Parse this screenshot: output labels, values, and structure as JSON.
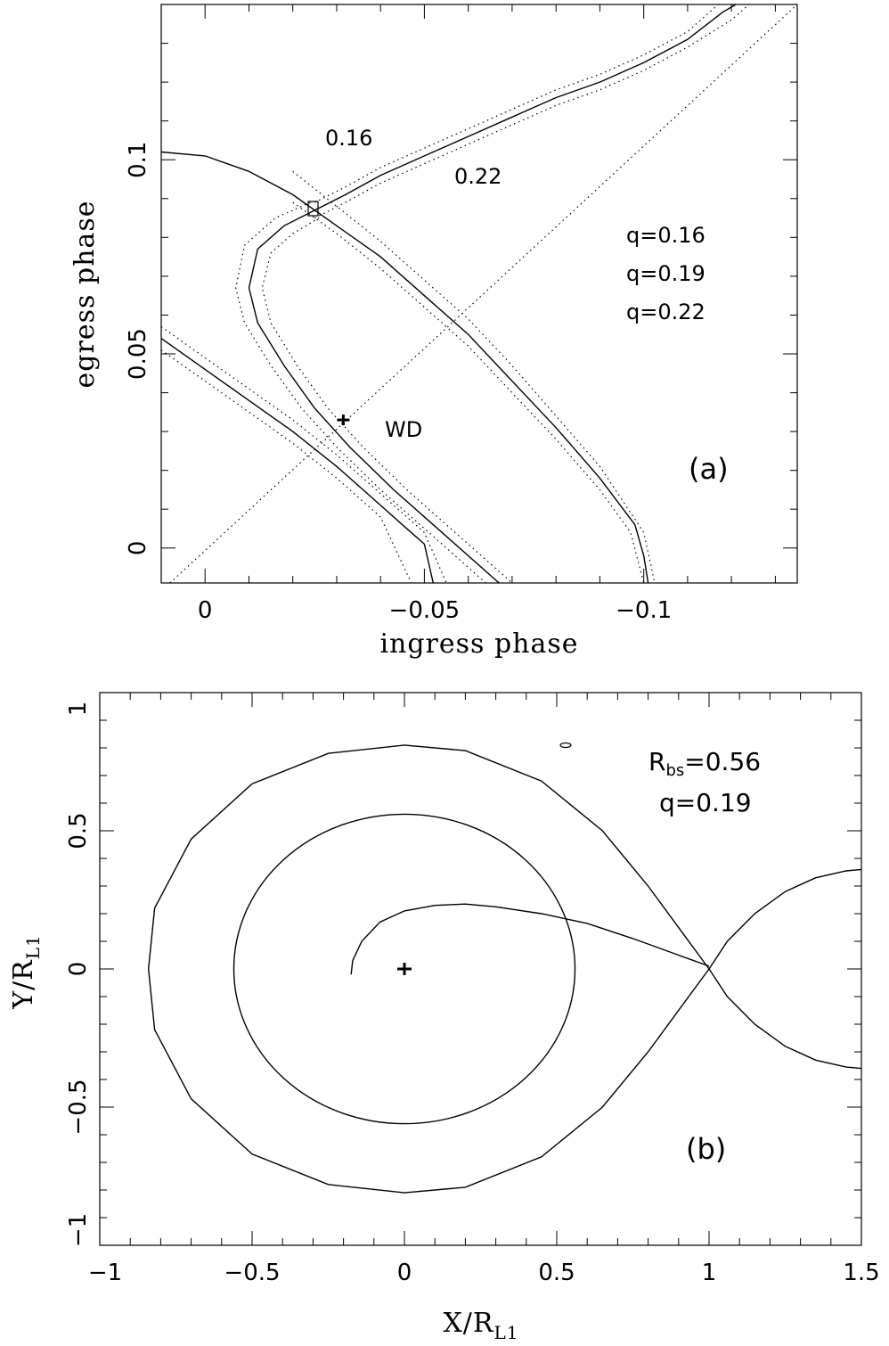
{
  "chart_data": [
    {
      "type": "line",
      "panel_label": "(a)",
      "xlabel": "ingress phase",
      "ylabel": "egress phase",
      "xlim": [
        0.01,
        -0.135
      ],
      "ylim": [
        -0.009,
        0.14
      ],
      "x_ticks": [
        0,
        -0.05,
        -0.1
      ],
      "x_tick_labels": [
        "0",
        "−0.05",
        "−0.1"
      ],
      "y_ticks": [
        0,
        0.05,
        0.1
      ],
      "y_tick_labels": [
        "0",
        "0.05",
        "0.1"
      ],
      "annotations": {
        "curve_label_1": "0.16",
        "curve_label_2": "0.22",
        "q_1": "q=0.16",
        "q_2": "q=0.19",
        "q_3": "q=0.22",
        "wd_label": "WD"
      },
      "wd_point": {
        "x": -0.0315,
        "y": 0.033
      },
      "series": [
        {
          "style": "solid",
          "points": [
            [
              0.01,
              0.102
            ],
            [
              0.0,
              0.101
            ],
            [
              -0.01,
              0.097
            ],
            [
              -0.02,
              0.091
            ],
            [
              -0.03,
              0.083
            ],
            [
              -0.04,
              0.075
            ],
            [
              -0.05,
              0.065
            ],
            [
              -0.06,
              0.055
            ],
            [
              -0.07,
              0.043
            ],
            [
              -0.08,
              0.031
            ],
            [
              -0.09,
              0.018
            ],
            [
              -0.098,
              0.006
            ],
            [
              -0.1,
              -0.002
            ],
            [
              -0.101,
              -0.009
            ]
          ]
        },
        {
          "style": "dotted",
          "points": [
            [
              -0.02,
              0.097
            ],
            [
              -0.03,
              0.088
            ],
            [
              -0.04,
              0.079
            ],
            [
              -0.05,
              0.069
            ],
            [
              -0.06,
              0.059
            ],
            [
              -0.07,
              0.047
            ],
            [
              -0.08,
              0.034
            ],
            [
              -0.09,
              0.021
            ],
            [
              -0.1,
              0.004
            ],
            [
              -0.1025,
              -0.009
            ]
          ]
        },
        {
          "style": "dotted",
          "points": [
            [
              -0.02,
              0.089
            ],
            [
              -0.03,
              0.081
            ],
            [
              -0.04,
              0.072
            ],
            [
              -0.05,
              0.062
            ],
            [
              -0.06,
              0.052
            ],
            [
              -0.07,
              0.04
            ],
            [
              -0.08,
              0.028
            ],
            [
              -0.09,
              0.015
            ],
            [
              -0.097,
              0.004
            ],
            [
              -0.1,
              -0.009
            ]
          ]
        },
        {
          "style": "solid",
          "points": [
            [
              -0.025,
              0.087
            ],
            [
              -0.018,
              0.083
            ],
            [
              -0.012,
              0.077
            ],
            [
              -0.01,
              0.067
            ],
            [
              -0.012,
              0.058
            ],
            [
              -0.018,
              0.047
            ],
            [
              -0.025,
              0.036
            ],
            [
              -0.033,
              0.026
            ],
            [
              -0.043,
              0.015
            ],
            [
              -0.055,
              0.003
            ],
            [
              -0.067,
              -0.009
            ]
          ]
        },
        {
          "style": "solid",
          "points": [
            [
              -0.025,
              0.087
            ],
            [
              -0.032,
              0.091
            ],
            [
              -0.04,
              0.096
            ],
            [
              -0.05,
              0.101
            ],
            [
              -0.06,
              0.106
            ],
            [
              -0.07,
              0.111
            ],
            [
              -0.08,
              0.116
            ],
            [
              -0.09,
              0.12
            ],
            [
              -0.1,
              0.125
            ],
            [
              -0.11,
              0.131
            ],
            [
              -0.118,
              0.138
            ],
            [
              -0.121,
              0.14
            ]
          ]
        },
        {
          "style": "dotted",
          "points": [
            [
              -0.024,
              0.089
            ],
            [
              -0.016,
              0.085
            ],
            [
              -0.009,
              0.078
            ],
            [
              -0.007,
              0.067
            ],
            [
              -0.009,
              0.058
            ],
            [
              -0.015,
              0.047
            ],
            [
              -0.022,
              0.036
            ],
            [
              -0.03,
              0.026
            ],
            [
              -0.04,
              0.015
            ],
            [
              -0.052,
              0.003
            ],
            [
              -0.064,
              -0.009
            ]
          ]
        },
        {
          "style": "dotted",
          "points": [
            [
              -0.026,
              0.085
            ],
            [
              -0.02,
              0.081
            ],
            [
              -0.015,
              0.076
            ],
            [
              -0.013,
              0.067
            ],
            [
              -0.015,
              0.058
            ],
            [
              -0.021,
              0.047
            ],
            [
              -0.028,
              0.036
            ],
            [
              -0.036,
              0.026
            ],
            [
              -0.046,
              0.015
            ],
            [
              -0.058,
              0.003
            ],
            [
              -0.07,
              -0.009
            ]
          ]
        },
        {
          "style": "dotted",
          "points": [
            [
              -0.025,
              0.089
            ],
            [
              -0.032,
              0.093
            ],
            [
              -0.04,
              0.098
            ],
            [
              -0.05,
              0.103
            ],
            [
              -0.06,
              0.108
            ],
            [
              -0.07,
              0.113
            ],
            [
              -0.08,
              0.118
            ],
            [
              -0.09,
              0.122
            ],
            [
              -0.1,
              0.127
            ],
            [
              -0.11,
              0.133
            ],
            [
              -0.117,
              0.14
            ]
          ]
        },
        {
          "style": "dotted",
          "points": [
            [
              -0.025,
              0.085
            ],
            [
              -0.032,
              0.089
            ],
            [
              -0.04,
              0.094
            ],
            [
              -0.05,
              0.099
            ],
            [
              -0.06,
              0.104
            ],
            [
              -0.07,
              0.109
            ],
            [
              -0.08,
              0.114
            ],
            [
              -0.09,
              0.118
            ],
            [
              -0.1,
              0.123
            ],
            [
              -0.11,
              0.129
            ],
            [
              -0.12,
              0.136
            ],
            [
              -0.124,
              0.14
            ]
          ]
        },
        {
          "style": "solid",
          "points": [
            [
              0.01,
              0.054
            ],
            [
              0.0,
              0.046
            ],
            [
              -0.01,
              0.038
            ],
            [
              -0.02,
              0.03
            ],
            [
              -0.03,
              0.021
            ],
            [
              -0.04,
              0.011
            ],
            [
              -0.045,
              0.006
            ],
            [
              -0.05,
              0.001
            ],
            [
              -0.052,
              -0.009
            ]
          ]
        },
        {
          "style": "dotted",
          "points": [
            [
              0.01,
              0.057
            ],
            [
              0.0,
              0.049
            ],
            [
              -0.01,
              0.041
            ],
            [
              -0.02,
              0.033
            ],
            [
              -0.03,
              0.024
            ],
            [
              -0.04,
              0.014
            ],
            [
              -0.05,
              0.004
            ],
            [
              -0.055,
              -0.009
            ]
          ]
        },
        {
          "style": "dotted",
          "points": [
            [
              0.01,
              0.051
            ],
            [
              0.0,
              0.043
            ],
            [
              -0.01,
              0.035
            ],
            [
              -0.02,
              0.027
            ],
            [
              -0.03,
              0.018
            ],
            [
              -0.04,
              0.008
            ],
            [
              -0.047,
              -0.009
            ]
          ]
        },
        {
          "style": "dotted",
          "points": [
            [
              0.008,
              -0.009
            ],
            [
              -0.135,
              0.14
            ]
          ]
        }
      ]
    },
    {
      "type": "line",
      "panel_label": "(b)",
      "xlabel": "X/R",
      "xlabel_sub": "L1",
      "ylabel": "Y/R",
      "ylabel_sub": "L1",
      "xlim": [
        -1,
        1.5
      ],
      "ylim": [
        -1,
        1
      ],
      "x_ticks": [
        -1,
        -0.5,
        0,
        0.5,
        1,
        1.5
      ],
      "x_tick_labels": [
        "−1",
        "−0.5",
        "0",
        "0.5",
        "1",
        "1.5"
      ],
      "y_ticks": [
        -1,
        -0.5,
        0,
        0.5,
        1
      ],
      "y_tick_labels": [
        "−1",
        "−0.5",
        "0",
        "0.5",
        "1"
      ],
      "annotations": {
        "rbs_main": "R",
        "rbs_sub": "bs",
        "rbs_value": "=0.56",
        "q": "q=0.19"
      },
      "wd_point": {
        "x": 0,
        "y": 0
      },
      "disc_radius": 0.56,
      "series": [
        {
          "name": "primary_roche_lobe",
          "style": "solid",
          "points": [
            [
              1.0,
              0.0
            ],
            [
              0.92,
              0.12
            ],
            [
              0.8,
              0.3
            ],
            [
              0.65,
              0.5
            ],
            [
              0.45,
              0.68
            ],
            [
              0.2,
              0.79
            ],
            [
              0.0,
              0.81
            ],
            [
              -0.25,
              0.78
            ],
            [
              -0.5,
              0.67
            ],
            [
              -0.7,
              0.47
            ],
            [
              -0.82,
              0.22
            ],
            [
              -0.84,
              0.0
            ],
            [
              -0.82,
              -0.22
            ],
            [
              -0.7,
              -0.47
            ],
            [
              -0.5,
              -0.67
            ],
            [
              -0.25,
              -0.78
            ],
            [
              0.0,
              -0.81
            ],
            [
              0.2,
              -0.79
            ],
            [
              0.45,
              -0.68
            ],
            [
              0.65,
              -0.5
            ],
            [
              0.8,
              -0.3
            ],
            [
              0.92,
              -0.12
            ],
            [
              1.0,
              0.0
            ]
          ]
        },
        {
          "name": "secondary_roche_lobe",
          "style": "solid",
          "points": [
            [
              1.0,
              0.0
            ],
            [
              1.06,
              0.1
            ],
            [
              1.15,
              0.2
            ],
            [
              1.25,
              0.28
            ],
            [
              1.35,
              0.33
            ],
            [
              1.45,
              0.355
            ],
            [
              1.5,
              0.36
            ]
          ]
        },
        {
          "name": "secondary_roche_lobe_lower",
          "style": "solid",
          "points": [
            [
              1.0,
              0.0
            ],
            [
              1.06,
              -0.1
            ],
            [
              1.15,
              -0.2
            ],
            [
              1.25,
              -0.28
            ],
            [
              1.35,
              -0.33
            ],
            [
              1.45,
              -0.355
            ],
            [
              1.5,
              -0.36
            ]
          ]
        },
        {
          "name": "gas_stream",
          "style": "solid",
          "points": [
            [
              1.0,
              0.01
            ],
            [
              0.9,
              0.05
            ],
            [
              0.75,
              0.11
            ],
            [
              0.6,
              0.165
            ],
            [
              0.45,
              0.2
            ],
            [
              0.3,
              0.225
            ],
            [
              0.2,
              0.235
            ],
            [
              0.1,
              0.23
            ],
            [
              0.0,
              0.21
            ],
            [
              -0.08,
              0.17
            ],
            [
              -0.14,
              0.1
            ],
            [
              -0.17,
              0.03
            ],
            [
              -0.175,
              -0.02
            ]
          ]
        }
      ]
    }
  ]
}
